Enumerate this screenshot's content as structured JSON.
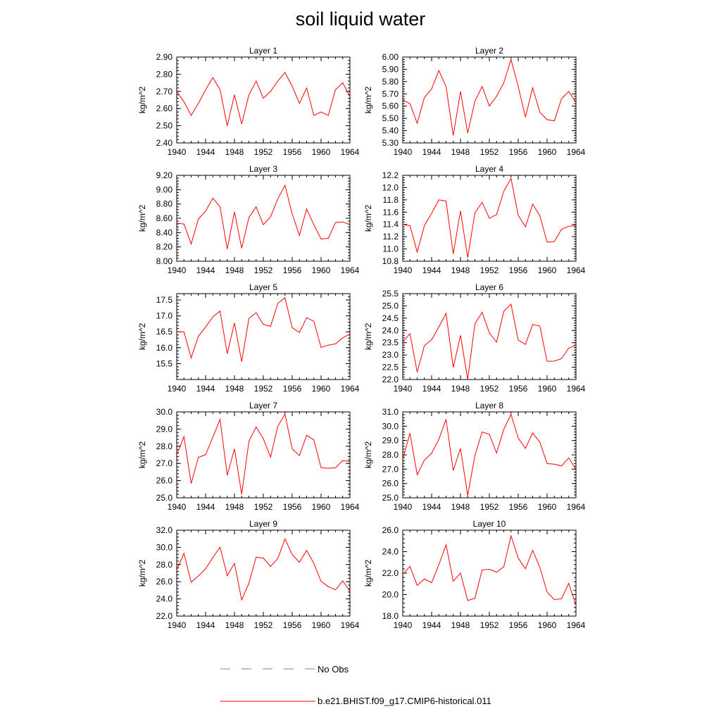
{
  "figure": {
    "title": "soil liquid water",
    "legend": [
      {
        "label": "No Obs",
        "color": "#7080c0",
        "style": "dashed"
      },
      {
        "label": "b.e21.BHIST.f09_g17.CMIP6-historical.011",
        "color": "#ff0000",
        "style": "solid"
      }
    ]
  },
  "chart_data": [
    {
      "type": "line",
      "title": "Layer 1",
      "ylabel": "kg/m^2",
      "xlim": [
        1940,
        1964
      ],
      "x_ticks": [
        1940,
        1944,
        1948,
        1952,
        1956,
        1960,
        1964
      ],
      "ylim": [
        2.4,
        2.9
      ],
      "y_ticks": [
        "2.40",
        "2.50",
        "2.60",
        "2.70",
        "2.80",
        "2.90"
      ],
      "series": [
        {
          "color": "#ff0000",
          "x": [
            1940,
            1941,
            1942,
            1943,
            1944,
            1945,
            1946,
            1947,
            1948,
            1949,
            1950,
            1951,
            1952,
            1953,
            1954,
            1955,
            1956,
            1957,
            1958,
            1959,
            1960,
            1961,
            1962,
            1963,
            1964
          ],
          "values": [
            2.7,
            2.64,
            2.56,
            2.63,
            2.71,
            2.78,
            2.71,
            2.5,
            2.68,
            2.51,
            2.68,
            2.76,
            2.66,
            2.7,
            2.76,
            2.81,
            2.73,
            2.63,
            2.72,
            2.56,
            2.58,
            2.56,
            2.71,
            2.75,
            2.67
          ]
        }
      ]
    },
    {
      "type": "line",
      "title": "Layer 2",
      "ylabel": "kg/m^2",
      "xlim": [
        1940,
        1964
      ],
      "x_ticks": [
        1940,
        1944,
        1948,
        1952,
        1956,
        1960,
        1964
      ],
      "ylim": [
        5.3,
        6.0
      ],
      "y_ticks": [
        "5.30",
        "5.40",
        "5.50",
        "5.60",
        "5.70",
        "5.80",
        "5.90",
        "6.00"
      ],
      "series": [
        {
          "color": "#ff0000",
          "x": [
            1940,
            1941,
            1942,
            1943,
            1944,
            1945,
            1946,
            1947,
            1948,
            1949,
            1950,
            1951,
            1952,
            1953,
            1954,
            1955,
            1956,
            1957,
            1958,
            1959,
            1960,
            1961,
            1962,
            1963,
            1964
          ],
          "values": [
            5.65,
            5.62,
            5.46,
            5.67,
            5.74,
            5.89,
            5.76,
            5.36,
            5.72,
            5.38,
            5.64,
            5.76,
            5.6,
            5.68,
            5.79,
            5.98,
            5.76,
            5.51,
            5.75,
            5.55,
            5.49,
            5.48,
            5.66,
            5.72,
            5.63
          ]
        }
      ]
    },
    {
      "type": "line",
      "title": "Layer 3",
      "ylabel": "kg/m^2",
      "xlim": [
        1940,
        1964
      ],
      "x_ticks": [
        1940,
        1944,
        1948,
        1952,
        1956,
        1960,
        1964
      ],
      "ylim": [
        8.0,
        9.2
      ],
      "y_ticks": [
        "8.00",
        "8.20",
        "8.40",
        "8.60",
        "8.80",
        "9.00",
        "9.20"
      ],
      "series": [
        {
          "color": "#ff0000",
          "x": [
            1940,
            1941,
            1942,
            1943,
            1944,
            1945,
            1946,
            1947,
            1948,
            1949,
            1950,
            1951,
            1952,
            1953,
            1954,
            1955,
            1956,
            1957,
            1958,
            1959,
            1960,
            1961,
            1962,
            1963,
            1964
          ],
          "values": [
            8.53,
            8.52,
            8.24,
            8.59,
            8.7,
            8.88,
            8.76,
            8.17,
            8.69,
            8.18,
            8.61,
            8.76,
            8.51,
            8.62,
            8.87,
            9.06,
            8.66,
            8.36,
            8.73,
            8.51,
            8.31,
            8.32,
            8.54,
            8.55,
            8.51
          ]
        }
      ]
    },
    {
      "type": "line",
      "title": "Layer 4",
      "ylabel": "kg/m^2",
      "xlim": [
        1940,
        1964
      ],
      "x_ticks": [
        1940,
        1944,
        1948,
        1952,
        1956,
        1960,
        1964
      ],
      "ylim": [
        10.8,
        12.2
      ],
      "y_ticks": [
        "10.8",
        "11.0",
        "11.2",
        "11.4",
        "11.6",
        "11.8",
        "12.0",
        "12.2"
      ],
      "series": [
        {
          "color": "#ff0000",
          "x": [
            1940,
            1941,
            1942,
            1943,
            1944,
            1945,
            1946,
            1947,
            1948,
            1949,
            1950,
            1951,
            1952,
            1953,
            1954,
            1955,
            1956,
            1957,
            1958,
            1959,
            1960,
            1961,
            1962,
            1963,
            1964
          ],
          "values": [
            11.4,
            11.38,
            10.95,
            11.38,
            11.58,
            11.8,
            11.78,
            10.92,
            11.62,
            10.86,
            11.59,
            11.76,
            11.5,
            11.56,
            11.94,
            12.15,
            11.55,
            11.36,
            11.73,
            11.54,
            11.11,
            11.12,
            11.32,
            11.37,
            11.38
          ]
        }
      ]
    },
    {
      "type": "line",
      "title": "Layer 5",
      "ylabel": "kg/m^2",
      "xlim": [
        1940,
        1964
      ],
      "x_ticks": [
        1940,
        1944,
        1948,
        1952,
        1956,
        1960,
        1964
      ],
      "ylim": [
        15.0,
        17.7
      ],
      "y_ticks": [
        "15.5",
        "16.0",
        "16.5",
        "17.0",
        "17.5"
      ],
      "series": [
        {
          "color": "#ff0000",
          "x": [
            1940,
            1941,
            1942,
            1943,
            1944,
            1945,
            1946,
            1947,
            1948,
            1949,
            1950,
            1951,
            1952,
            1953,
            1954,
            1955,
            1956,
            1957,
            1958,
            1959,
            1960,
            1961,
            1962,
            1963,
            1964
          ],
          "values": [
            16.5,
            16.5,
            15.68,
            16.36,
            16.65,
            16.97,
            17.15,
            15.81,
            16.78,
            15.56,
            16.92,
            17.1,
            16.73,
            16.67,
            17.39,
            17.57,
            16.63,
            16.48,
            16.94,
            16.83,
            16.01,
            16.08,
            16.12,
            16.31,
            16.43
          ]
        }
      ]
    },
    {
      "type": "line",
      "title": "Layer 6",
      "ylabel": "kg/m^2",
      "xlim": [
        1940,
        1964
      ],
      "x_ticks": [
        1940,
        1944,
        1948,
        1952,
        1956,
        1960,
        1964
      ],
      "ylim": [
        22.0,
        25.5
      ],
      "y_ticks": [
        "22.0",
        "22.5",
        "23.0",
        "23.5",
        "24.0",
        "24.5",
        "25.0",
        "25.5"
      ],
      "series": [
        {
          "color": "#ff0000",
          "x": [
            1940,
            1941,
            1942,
            1943,
            1944,
            1945,
            1946,
            1947,
            1948,
            1949,
            1950,
            1951,
            1952,
            1953,
            1954,
            1955,
            1956,
            1957,
            1958,
            1959,
            1960,
            1961,
            1962,
            1963,
            1964
          ],
          "values": [
            23.53,
            23.87,
            22.3,
            23.38,
            23.62,
            24.14,
            24.69,
            22.49,
            23.8,
            22.01,
            24.27,
            24.74,
            23.9,
            23.52,
            24.78,
            25.07,
            23.61,
            23.43,
            24.24,
            24.18,
            22.74,
            22.75,
            22.85,
            23.28,
            23.4
          ]
        }
      ]
    },
    {
      "type": "line",
      "title": "Layer 7",
      "ylabel": "kg/m^2",
      "xlim": [
        1940,
        1964
      ],
      "x_ticks": [
        1940,
        1944,
        1948,
        1952,
        1956,
        1960,
        1964
      ],
      "ylim": [
        25.0,
        30.0
      ],
      "y_ticks": [
        "25.0",
        "26.0",
        "27.0",
        "28.0",
        "29.0",
        "30.0"
      ],
      "series": [
        {
          "color": "#ff0000",
          "x": [
            1940,
            1941,
            1942,
            1943,
            1944,
            1945,
            1946,
            1947,
            1948,
            1949,
            1950,
            1951,
            1952,
            1953,
            1954,
            1955,
            1956,
            1957,
            1958,
            1959,
            1960,
            1961,
            1962,
            1963,
            1964
          ],
          "values": [
            27.5,
            28.56,
            25.84,
            27.35,
            27.51,
            28.52,
            29.56,
            26.31,
            27.85,
            25.21,
            28.28,
            29.13,
            28.44,
            27.37,
            29.16,
            29.86,
            27.85,
            27.46,
            28.64,
            28.37,
            26.75,
            26.72,
            26.74,
            27.17,
            27.11
          ]
        }
      ]
    },
    {
      "type": "line",
      "title": "Layer 8",
      "ylabel": "kg/m^2",
      "xlim": [
        1940,
        1964
      ],
      "x_ticks": [
        1940,
        1944,
        1948,
        1952,
        1956,
        1960,
        1964
      ],
      "ylim": [
        25.0,
        31.0
      ],
      "y_ticks": [
        "25.0",
        "26.0",
        "27.0",
        "28.0",
        "29.0",
        "30.0",
        "31.0"
      ],
      "series": [
        {
          "color": "#ff0000",
          "x": [
            1940,
            1941,
            1942,
            1943,
            1944,
            1945,
            1946,
            1947,
            1948,
            1949,
            1950,
            1951,
            1952,
            1953,
            1954,
            1955,
            1956,
            1957,
            1958,
            1959,
            1960,
            1961,
            1962,
            1963,
            1964
          ],
          "values": [
            27.68,
            29.51,
            26.61,
            27.63,
            28.11,
            29.08,
            30.48,
            26.91,
            28.45,
            25.16,
            27.97,
            29.6,
            29.43,
            28.13,
            29.78,
            30.83,
            29.17,
            28.45,
            29.53,
            28.88,
            27.39,
            27.35,
            27.23,
            27.79,
            26.98
          ]
        }
      ]
    },
    {
      "type": "line",
      "title": "Layer 9",
      "ylabel": "kg/m^2",
      "xlim": [
        1940,
        1964
      ],
      "x_ticks": [
        1940,
        1944,
        1948,
        1952,
        1956,
        1960,
        1964
      ],
      "ylim": [
        22.0,
        32.0
      ],
      "y_ticks": [
        "22.0",
        "24.0",
        "26.0",
        "28.0",
        "30.0",
        "32.0"
      ],
      "series": [
        {
          "color": "#ff0000",
          "x": [
            1940,
            1941,
            1942,
            1943,
            1944,
            1945,
            1946,
            1947,
            1948,
            1949,
            1950,
            1951,
            1952,
            1953,
            1954,
            1955,
            1956,
            1957,
            1958,
            1959,
            1960,
            1961,
            1962,
            1963,
            1964
          ],
          "values": [
            27.37,
            29.3,
            25.94,
            26.67,
            27.51,
            28.79,
            30.03,
            26.7,
            28.15,
            23.87,
            25.84,
            28.86,
            28.75,
            27.78,
            28.7,
            30.99,
            29.17,
            28.27,
            29.64,
            28.14,
            26.04,
            25.43,
            25.06,
            26.09,
            24.88
          ]
        }
      ]
    },
    {
      "type": "line",
      "title": "Layer 10",
      "ylabel": "kg/m^2",
      "xlim": [
        1940,
        1964
      ],
      "x_ticks": [
        1940,
        1944,
        1948,
        1952,
        1956,
        1960,
        1964
      ],
      "ylim": [
        18.0,
        26.0
      ],
      "y_ticks": [
        "18.0",
        "20.0",
        "22.0",
        "24.0",
        "26.0"
      ],
      "series": [
        {
          "color": "#ff0000",
          "x": [
            1940,
            1941,
            1942,
            1943,
            1944,
            1945,
            1946,
            1947,
            1948,
            1949,
            1950,
            1951,
            1952,
            1953,
            1954,
            1955,
            1956,
            1957,
            1958,
            1959,
            1960,
            1961,
            1962,
            1963,
            1964
          ],
          "values": [
            21.89,
            22.63,
            20.86,
            21.45,
            21.11,
            22.78,
            24.64,
            21.25,
            22.0,
            19.45,
            19.66,
            22.3,
            22.37,
            22.09,
            22.6,
            25.47,
            23.4,
            22.41,
            24.13,
            22.53,
            20.24,
            19.54,
            19.61,
            21.05,
            18.99
          ]
        }
      ]
    }
  ]
}
